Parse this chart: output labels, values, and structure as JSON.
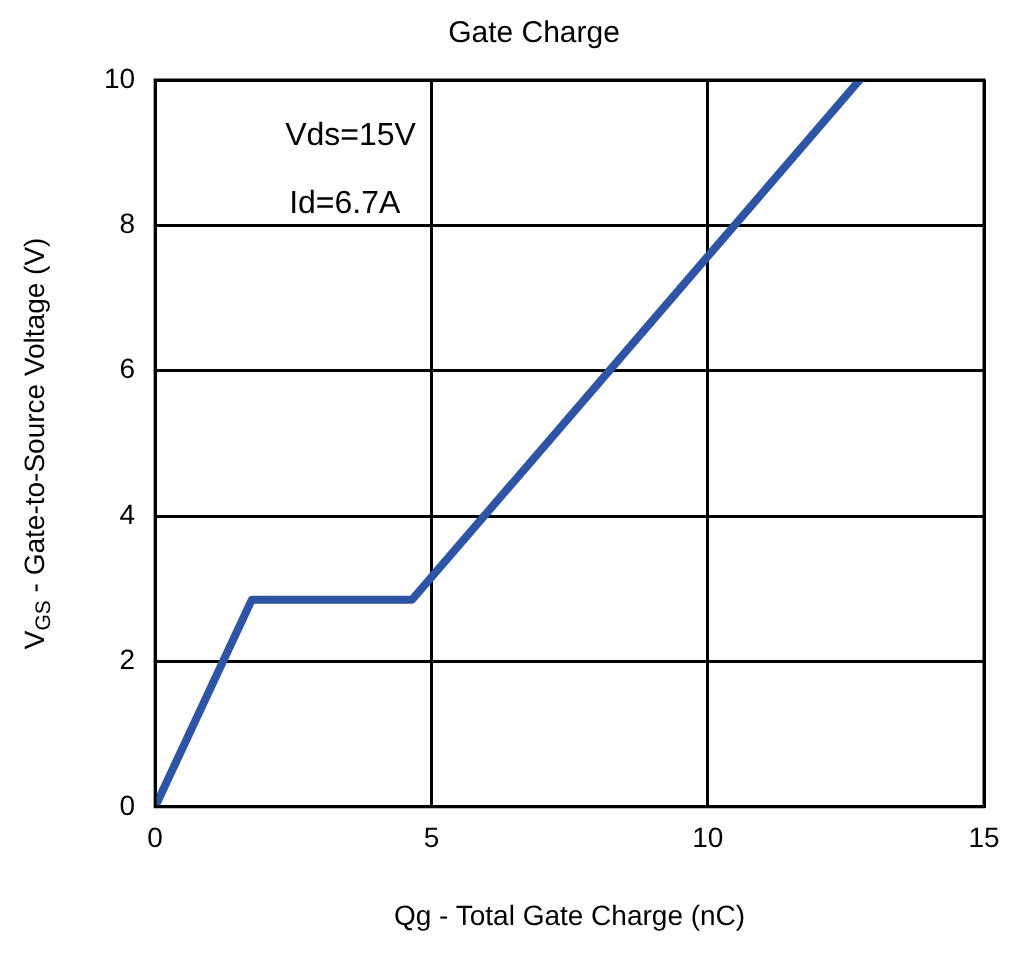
{
  "chart_data": {
    "type": "line",
    "title": "Gate Charge",
    "xlabel": "Qg - Total Gate Charge (nC)",
    "ylabel": "V$_{GS}$ - Gate-to-Source Voltage (V)",
    "annotations": [
      "Vds=15V",
      "Id=6.7A"
    ],
    "x": [
      0,
      1.75,
      4.65,
      12.75
    ],
    "series": [
      {
        "color": "#2e55a5",
        "values": [
          0,
          2.85,
          2.85,
          10
        ]
      }
    ],
    "xlim": [
      0,
      15
    ],
    "xticks": [
      0,
      5,
      10,
      15
    ],
    "ylim": [
      0,
      10
    ],
    "yticks": [
      0,
      2,
      4,
      6,
      8,
      10
    ],
    "grid": true,
    "legend": false,
    "marker": "none",
    "line_style": "solid"
  }
}
